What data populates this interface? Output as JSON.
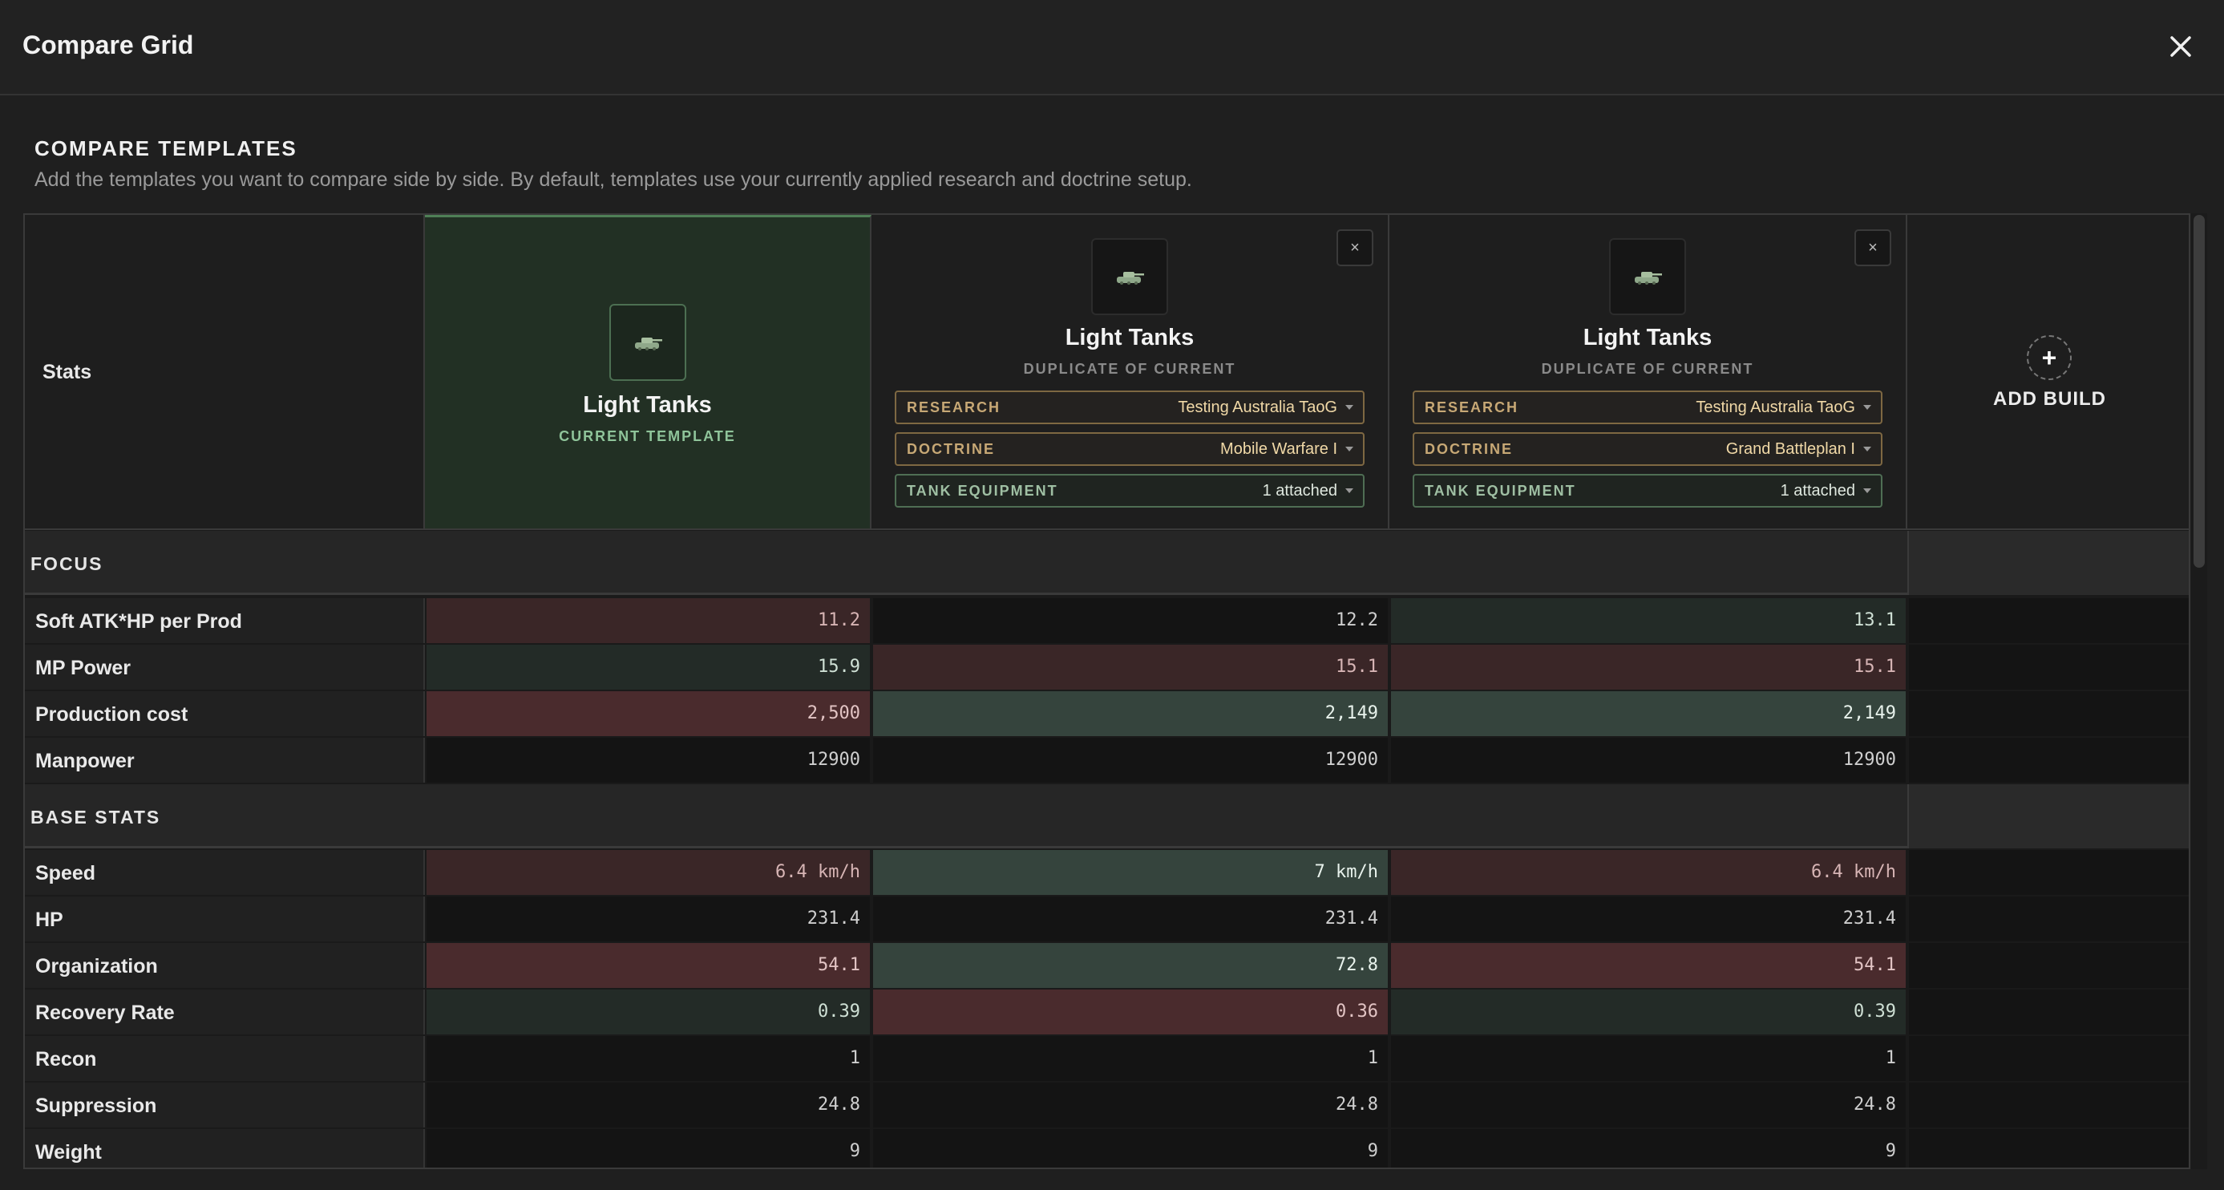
{
  "window": {
    "title": "Compare Grid",
    "close_icon": "close-icon"
  },
  "intro": {
    "heading": "COMPARE TEMPLATES",
    "description": "Add the templates you want to compare side by side. By default, templates use your currently applied research and doctrine setup."
  },
  "grid": {
    "stats_label": "Stats",
    "columns": [
      {
        "name": "Light Tanks",
        "subtitle": "CURRENT TEMPLATE",
        "icon": "tank-icon"
      },
      {
        "name": "Light Tanks",
        "subtitle": "DUPLICATE OF CURRENT",
        "icon": "tank-icon",
        "remove_label": "×",
        "research": {
          "label": "RESEARCH",
          "value": "Testing Australia TaoG"
        },
        "doctrine": {
          "label": "DOCTRINE",
          "value": "Mobile Warfare I"
        },
        "equipment": {
          "label": "TANK EQUIPMENT",
          "value": "1 attached"
        }
      },
      {
        "name": "Light Tanks",
        "subtitle": "DUPLICATE OF CURRENT",
        "icon": "tank-icon",
        "remove_label": "×",
        "research": {
          "label": "RESEARCH",
          "value": "Testing Australia TaoG"
        },
        "doctrine": {
          "label": "DOCTRINE",
          "value": "Grand Battleplan I"
        },
        "equipment": {
          "label": "TANK EQUIPMENT",
          "value": "1 attached"
        }
      }
    ],
    "add_build": {
      "icon": "+",
      "label": "ADD BUILD"
    },
    "groups": [
      {
        "title": "FOCUS",
        "rows": [
          {
            "label": "Soft ATK*HP per Prod",
            "values": [
              "11.2",
              "12.2",
              "13.1"
            ],
            "status": [
              "bad",
              "neutral",
              "good"
            ]
          },
          {
            "label": "MP Power",
            "values": [
              "15.9",
              "15.1",
              "15.1"
            ],
            "status": [
              "good",
              "bad",
              "bad"
            ]
          },
          {
            "label": "Production cost",
            "values": [
              "2,500",
              "2,149",
              "2,149"
            ],
            "status": [
              "badstrong",
              "goodstrong",
              "goodstrong"
            ]
          },
          {
            "label": "Manpower",
            "values": [
              "12900",
              "12900",
              "12900"
            ],
            "status": [
              "neutral",
              "neutral",
              "neutral"
            ]
          }
        ]
      },
      {
        "title": "BASE STATS",
        "rows": [
          {
            "label": "Speed",
            "values": [
              "6.4 km/h",
              "7 km/h",
              "6.4 km/h"
            ],
            "status": [
              "bad",
              "goodstrong",
              "bad"
            ]
          },
          {
            "label": "HP",
            "values": [
              "231.4",
              "231.4",
              "231.4"
            ],
            "status": [
              "neutral",
              "neutral",
              "neutral"
            ]
          },
          {
            "label": "Organization",
            "values": [
              "54.1",
              "72.8",
              "54.1"
            ],
            "status": [
              "badstrong",
              "goodstrong",
              "badstrong"
            ]
          },
          {
            "label": "Recovery Rate",
            "values": [
              "0.39",
              "0.36",
              "0.39"
            ],
            "status": [
              "good",
              "badstrong",
              "good"
            ]
          },
          {
            "label": "Recon",
            "values": [
              "1",
              "1",
              "1"
            ],
            "status": [
              "neutral",
              "neutral",
              "neutral"
            ]
          },
          {
            "label": "Suppression",
            "values": [
              "24.8",
              "24.8",
              "24.8"
            ],
            "status": [
              "neutral",
              "neutral",
              "neutral"
            ]
          },
          {
            "label": "Weight",
            "values": [
              "9",
              "9",
              "9"
            ],
            "status": [
              "neutral",
              "neutral",
              "neutral"
            ]
          }
        ]
      }
    ]
  }
}
